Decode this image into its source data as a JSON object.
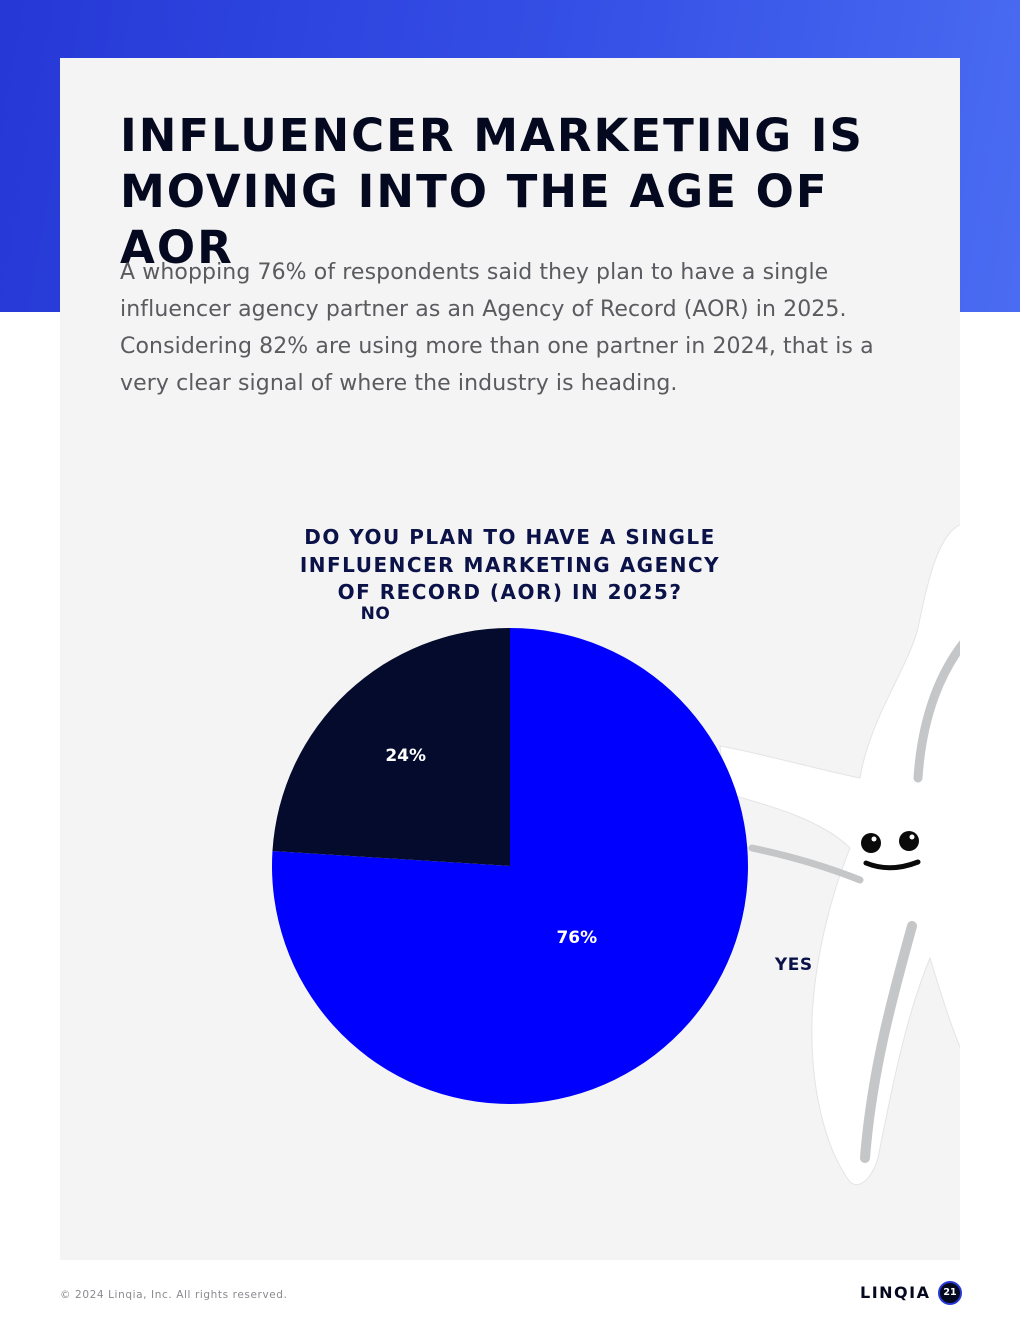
{
  "page": {
    "headline_lines": [
      "INFLUENCER MARKETING IS",
      "MOVING INTO THE AGE OF AOR"
    ],
    "intro": "A whopping 76% of respondents said they plan to have a single influencer agency partner as an Agency of Record (AOR) in 2025. Considering 82% are using more than one partner in 2024, that is a very clear signal of where the industry is heading."
  },
  "chart_data": {
    "type": "pie",
    "title_lines": [
      "DO YOU PLAN TO HAVE A SINGLE",
      "INFLUENCER MARKETING AGENCY",
      "OF RECORD (AOR) IN 2025?"
    ],
    "slices": [
      {
        "label": "YES",
        "value": 76,
        "value_label": "76%",
        "color": "#0000ff"
      },
      {
        "label": "NO",
        "value": 24,
        "value_label": "24%",
        "color": "#050b2c"
      }
    ]
  },
  "decor": {
    "illustration": "starfish-mascot"
  },
  "footer": {
    "copyright": "© 2024 Linqia, Inc. All rights reserved.",
    "logo": "LINQIA",
    "page_number": "21"
  },
  "colors": {
    "brand_blue": "#2638d6",
    "navy": "#0b1248",
    "yes_slice": "#0000ff",
    "no_slice": "#050b2c"
  }
}
